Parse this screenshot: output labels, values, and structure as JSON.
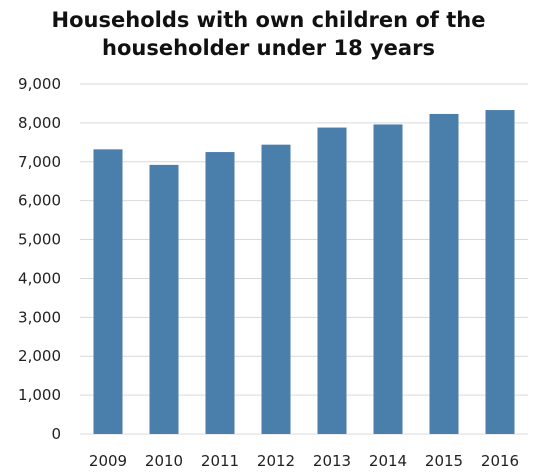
{
  "chart_data": {
    "type": "bar",
    "title": "Households with own children of the householder under 18 years",
    "title_lines": [
      "Households with own children of the",
      "householder under 18 years"
    ],
    "xlabel": "",
    "ylabel": "",
    "categories": [
      "2009",
      "2010",
      "2011",
      "2012",
      "2013",
      "2014",
      "2015",
      "2016"
    ],
    "values": [
      7320,
      6920,
      7250,
      7440,
      7880,
      7960,
      8230,
      8330
    ],
    "ylim": [
      0,
      9000
    ],
    "yticks": [
      0,
      1000,
      2000,
      3000,
      4000,
      5000,
      6000,
      7000,
      8000,
      9000
    ],
    "ytick_labels": [
      "0",
      "1,000",
      "2,000",
      "3,000",
      "4,000",
      "5,000",
      "6,000",
      "7,000",
      "8,000",
      "9,000"
    ],
    "grid": true,
    "legend": "none",
    "bar_color": "#4a7eab",
    "grid_color": "#d9d9d9"
  }
}
